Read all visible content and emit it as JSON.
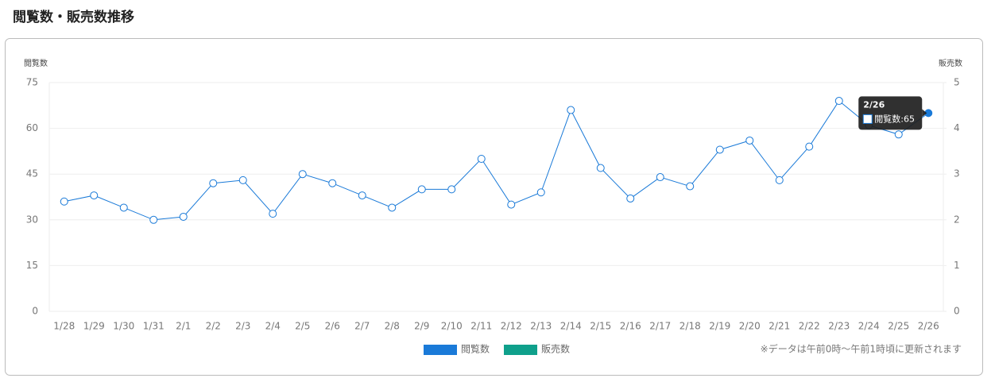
{
  "chart_data": {
    "type": "line",
    "title": "閲覧数・販売数推移",
    "y_label": "閲覧数",
    "y2_label": "販売数",
    "note": "※データは午前0時～午前1時頃に更新されます",
    "categories": [
      "1/28",
      "1/29",
      "1/30",
      "1/31",
      "2/1",
      "2/2",
      "2/3",
      "2/4",
      "2/5",
      "2/6",
      "2/7",
      "2/8",
      "2/9",
      "2/10",
      "2/11",
      "2/12",
      "2/13",
      "2/14",
      "2/15",
      "2/16",
      "2/17",
      "2/18",
      "2/19",
      "2/20",
      "2/21",
      "2/22",
      "2/23",
      "2/24",
      "2/25",
      "2/26"
    ],
    "series": [
      {
        "name": "閲覧数",
        "color": "#1a7ad8",
        "values": [
          36,
          38,
          34,
          30,
          31,
          42,
          43,
          32,
          45,
          42,
          38,
          34,
          40,
          40,
          50,
          35,
          39,
          66,
          47,
          37,
          44,
          41,
          53,
          56,
          43,
          54,
          69,
          61,
          58,
          65
        ]
      },
      {
        "name": "販売数",
        "color": "#0fa08b",
        "axis": "y2",
        "values": [
          null,
          null,
          null,
          null,
          null,
          null,
          null,
          null,
          null,
          null,
          null,
          null,
          null,
          null,
          null,
          null,
          null,
          null,
          null,
          null,
          null,
          null,
          null,
          null,
          null,
          null,
          null,
          null,
          null,
          null
        ]
      }
    ],
    "ylim": [
      0,
      75
    ],
    "yticks": [
      0,
      15,
      30,
      45,
      60,
      75
    ],
    "y2lim": [
      0,
      5
    ],
    "y2ticks": [
      0,
      1,
      2,
      3,
      4,
      5
    ],
    "grid": true
  }
}
